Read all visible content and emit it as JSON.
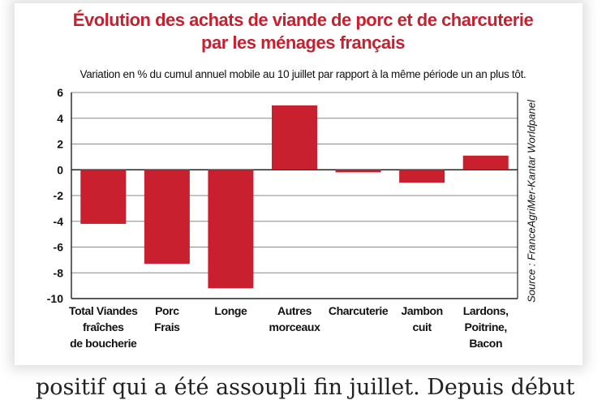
{
  "chart_data": {
    "type": "bar",
    "title_lines": [
      "Évolution des achats de viande de porc et de charcuterie",
      "par les ménages français"
    ],
    "subtitle": "Variation en % du cumul annuel mobile au 10 juillet par rapport à la même période un an plus tôt.",
    "source": "Source : FranceAgriMer-Kantar Worldpanel",
    "categories": [
      [
        "Total Viandes",
        "fraîches",
        "de boucherie"
      ],
      [
        "Porc",
        "Frais"
      ],
      [
        "Longe"
      ],
      [
        "Autres",
        "morceaux"
      ],
      [
        "Charcuterie"
      ],
      [
        "Jambon",
        "cuit"
      ],
      [
        "Lardons,",
        "Poitrine,",
        "Bacon"
      ]
    ],
    "values": [
      -4.2,
      -7.3,
      -9.2,
      5.0,
      -0.2,
      -1.0,
      1.1
    ],
    "ylim": [
      -10,
      6
    ],
    "yticks": [
      "6",
      "4",
      "2",
      "0",
      "-2",
      "-4",
      "-6",
      "-8",
      "-10"
    ],
    "grid": true,
    "bar_color": "#c8202f"
  },
  "page": {
    "bottom_text": "positif qui a été assoupli fin juillet. Depuis début"
  }
}
